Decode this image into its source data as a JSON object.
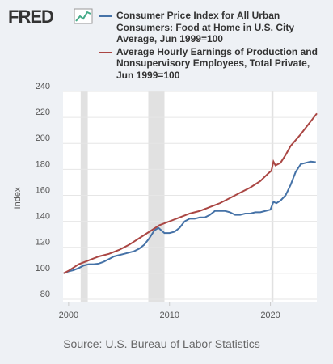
{
  "logo": "FRED",
  "chart_data": {
    "type": "line",
    "series": [
      {
        "name": "Consumer Price Index for All Urban Consumers: Food at Home in U.S. City Average, Jun 1999=100",
        "color": "#4572a7",
        "x": [
          1999.5,
          2000,
          2000.5,
          2001,
          2001.5,
          2002,
          2002.5,
          2003,
          2003.5,
          2004,
          2004.5,
          2005,
          2005.5,
          2006,
          2006.5,
          2007,
          2007.5,
          2008,
          2008.5,
          2008.9,
          2009.5,
          2010,
          2010.5,
          2011,
          2011.5,
          2012,
          2012.5,
          2013,
          2013.5,
          2014,
          2014.5,
          2015,
          2015.5,
          2016,
          2016.5,
          2017,
          2017.5,
          2018,
          2018.5,
          2019,
          2019.5,
          2020,
          2020.3,
          2020.6,
          2021,
          2021.5,
          2022,
          2022.5,
          2023,
          2023.5,
          2024,
          2024.5
        ],
        "values": [
          100,
          101.5,
          102.5,
          104,
          106,
          107,
          107,
          107.5,
          109,
          111,
          113,
          114,
          115,
          116,
          117,
          119,
          122,
          127,
          133,
          135,
          131,
          131,
          132,
          135,
          140,
          142,
          142,
          143,
          143,
          145,
          148,
          148,
          148,
          147,
          145,
          145,
          146,
          146,
          147,
          147,
          148,
          149,
          155,
          154,
          156,
          160,
          168,
          178,
          184,
          185,
          186,
          185.5
        ]
      },
      {
        "name": "Average Hourly Earnings of Production and Nonsupervisory Employees, Total Private, Jun 1999=100",
        "color": "#aa4643",
        "x": [
          1999.5,
          2000,
          2001,
          2002,
          2003,
          2004,
          2005,
          2006,
          2007,
          2008,
          2009,
          2010,
          2011,
          2012,
          2013,
          2014,
          2015,
          2016,
          2017,
          2018,
          2019,
          2019.8,
          2020.1,
          2020.3,
          2020.5,
          2021,
          2021.5,
          2022,
          2023,
          2024,
          2024.6
        ],
        "values": [
          100,
          102,
          107,
          110,
          113,
          115,
          118,
          122,
          127,
          132,
          137,
          140,
          143,
          146,
          148,
          151,
          154,
          158,
          162,
          166,
          171,
          177,
          179,
          186,
          183,
          185,
          191,
          198,
          207,
          217,
          223
        ]
      }
    ],
    "recessions": [
      [
        2001.2,
        2001.9
      ],
      [
        2007.9,
        2009.5
      ],
      [
        2020.1,
        2020.3
      ]
    ],
    "y_label": "Index",
    "xlim": [
      1999.45,
      2024.6
    ],
    "xticks": [
      2000,
      2010,
      2020
    ],
    "ylim": [
      80,
      240
    ],
    "yticks": [
      80,
      100,
      120,
      140,
      160,
      180,
      200,
      220,
      240
    ],
    "grid": true,
    "source": "Source: U.S. Bureau of Labor Statistics"
  }
}
